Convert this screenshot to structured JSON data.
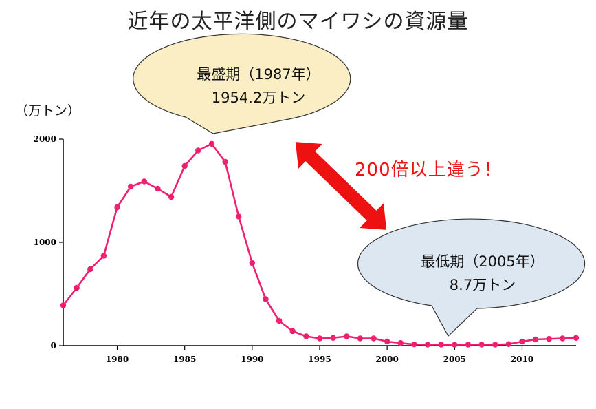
{
  "title": "近年の太平洋側のマイワシの資源量",
  "unit_label": "（万トン）",
  "colors": {
    "series": "#f02070",
    "peak_fill": "#fbeec5",
    "low_fill": "#dde7f2",
    "arrow": "#ee1111"
  },
  "callouts": {
    "peak": {
      "line1": "最盛期（1987年）",
      "line2": "1954.2万トン"
    },
    "low": {
      "line1": "最低期（2005年）",
      "line2": "8.7万トン"
    }
  },
  "comparison_text": "200倍以上違う！",
  "chart_data": {
    "type": "line",
    "title": "近年の太平洋側のマイワシの資源量",
    "ylabel": "（万トン）",
    "xlabel": "",
    "xlim": [
      1976,
      2014
    ],
    "ylim": [
      0,
      2000
    ],
    "x_ticks": [
      "1980",
      "1985",
      "1990",
      "1995",
      "2000",
      "2005",
      "2010"
    ],
    "y_ticks": [
      "0",
      "1000",
      "2000"
    ],
    "grid": false,
    "x": [
      1976,
      1977,
      1978,
      1979,
      1980,
      1981,
      1982,
      1983,
      1984,
      1985,
      1986,
      1987,
      1988,
      1989,
      1990,
      1991,
      1992,
      1993,
      1994,
      1995,
      1996,
      1997,
      1998,
      1999,
      2000,
      2001,
      2002,
      2003,
      2004,
      2005,
      2006,
      2007,
      2008,
      2009,
      2010,
      2011,
      2012,
      2013,
      2014
    ],
    "series": [
      {
        "values": [
          390,
          560,
          740,
          870,
          1340,
          1540,
          1590,
          1520,
          1440,
          1740,
          1890,
          1954.2,
          1780,
          1250,
          800,
          450,
          240,
          140,
          90,
          70,
          75,
          90,
          70,
          70,
          40,
          25,
          12,
          10,
          10,
          8.7,
          10,
          10,
          10,
          15,
          40,
          60,
          65,
          70,
          75
        ]
      }
    ]
  }
}
